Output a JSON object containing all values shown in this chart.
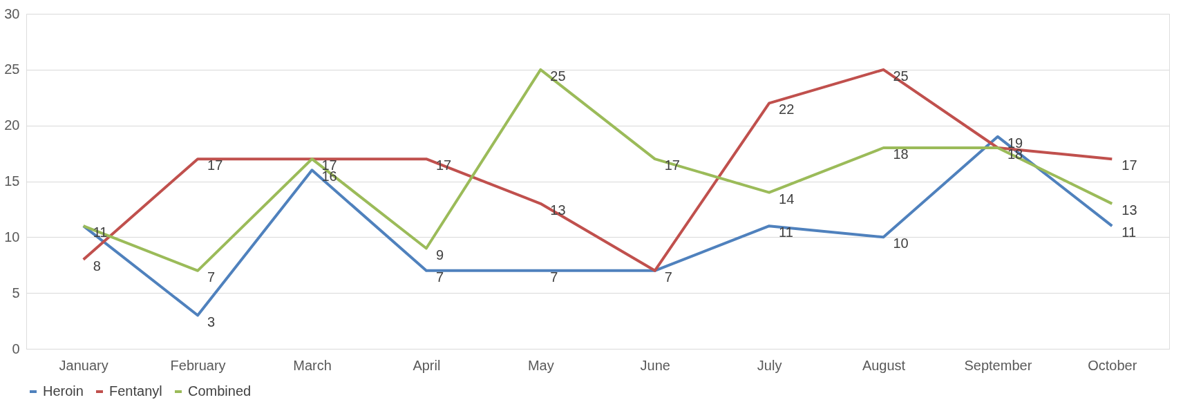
{
  "chart_data": {
    "type": "line",
    "categories": [
      "January",
      "February",
      "March",
      "April",
      "May",
      "June",
      "July",
      "August",
      "September",
      "October"
    ],
    "series": [
      {
        "name": "Heroin",
        "color": "#4f81bd",
        "values": [
          11,
          3,
          16,
          7,
          7,
          7,
          11,
          10,
          19,
          11
        ],
        "value_labels": [
          "11",
          "3",
          "16",
          "7",
          "7",
          "7",
          "11",
          "10",
          "19",
          "11"
        ]
      },
      {
        "name": "Fentanyl",
        "color": "#c0504d",
        "values": [
          8,
          17,
          17,
          17,
          13,
          7,
          22,
          25,
          18,
          17
        ],
        "value_labels": [
          "8",
          "17",
          "17",
          "17",
          "13",
          null,
          "22",
          "25",
          "18",
          "17"
        ]
      },
      {
        "name": "Combined",
        "color": "#9bbb59",
        "values": [
          11,
          7,
          17,
          9,
          25,
          17,
          14,
          18,
          18,
          13
        ],
        "value_labels": [
          null,
          "7",
          null,
          "9",
          "25",
          "17",
          "14",
          "18",
          null,
          "13"
        ]
      }
    ],
    "ylim": [
      0,
      30
    ],
    "yticks": [
      0,
      5,
      10,
      15,
      20,
      25,
      30
    ],
    "grid": "y",
    "legend": "bottom",
    "marker": "none",
    "line_style": "solid"
  }
}
